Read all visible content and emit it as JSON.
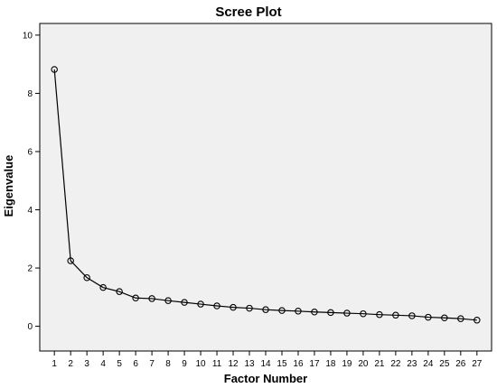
{
  "chart_data": {
    "type": "line",
    "title": "Scree Plot",
    "xlabel": "Factor Number",
    "ylabel": "Eigenvalue",
    "x": [
      1,
      2,
      3,
      4,
      5,
      6,
      7,
      8,
      9,
      10,
      11,
      12,
      13,
      14,
      15,
      16,
      17,
      18,
      19,
      20,
      21,
      22,
      23,
      24,
      25,
      26,
      27
    ],
    "series": [
      {
        "values": [
          8.82,
          2.25,
          1.67,
          1.33,
          1.19,
          0.97,
          0.95,
          0.88,
          0.82,
          0.76,
          0.7,
          0.65,
          0.62,
          0.57,
          0.54,
          0.52,
          0.49,
          0.47,
          0.45,
          0.43,
          0.4,
          0.38,
          0.36,
          0.31,
          0.29,
          0.26,
          0.21
        ]
      }
    ],
    "xlim": [
      0.1,
      27.9
    ],
    "ylim": [
      -0.85,
      10.4
    ],
    "yticks": [
      0,
      2,
      4,
      6,
      8,
      10
    ],
    "xticks": [
      1,
      2,
      3,
      4,
      5,
      6,
      7,
      8,
      9,
      10,
      11,
      12,
      13,
      14,
      15,
      16,
      17,
      18,
      19,
      20,
      21,
      22,
      23,
      24,
      25,
      26,
      27
    ],
    "grid": false,
    "colors": {
      "plot_background": "#f0f0f0",
      "line": "#000000",
      "marker": "#000000"
    },
    "marker": "open-circle"
  }
}
